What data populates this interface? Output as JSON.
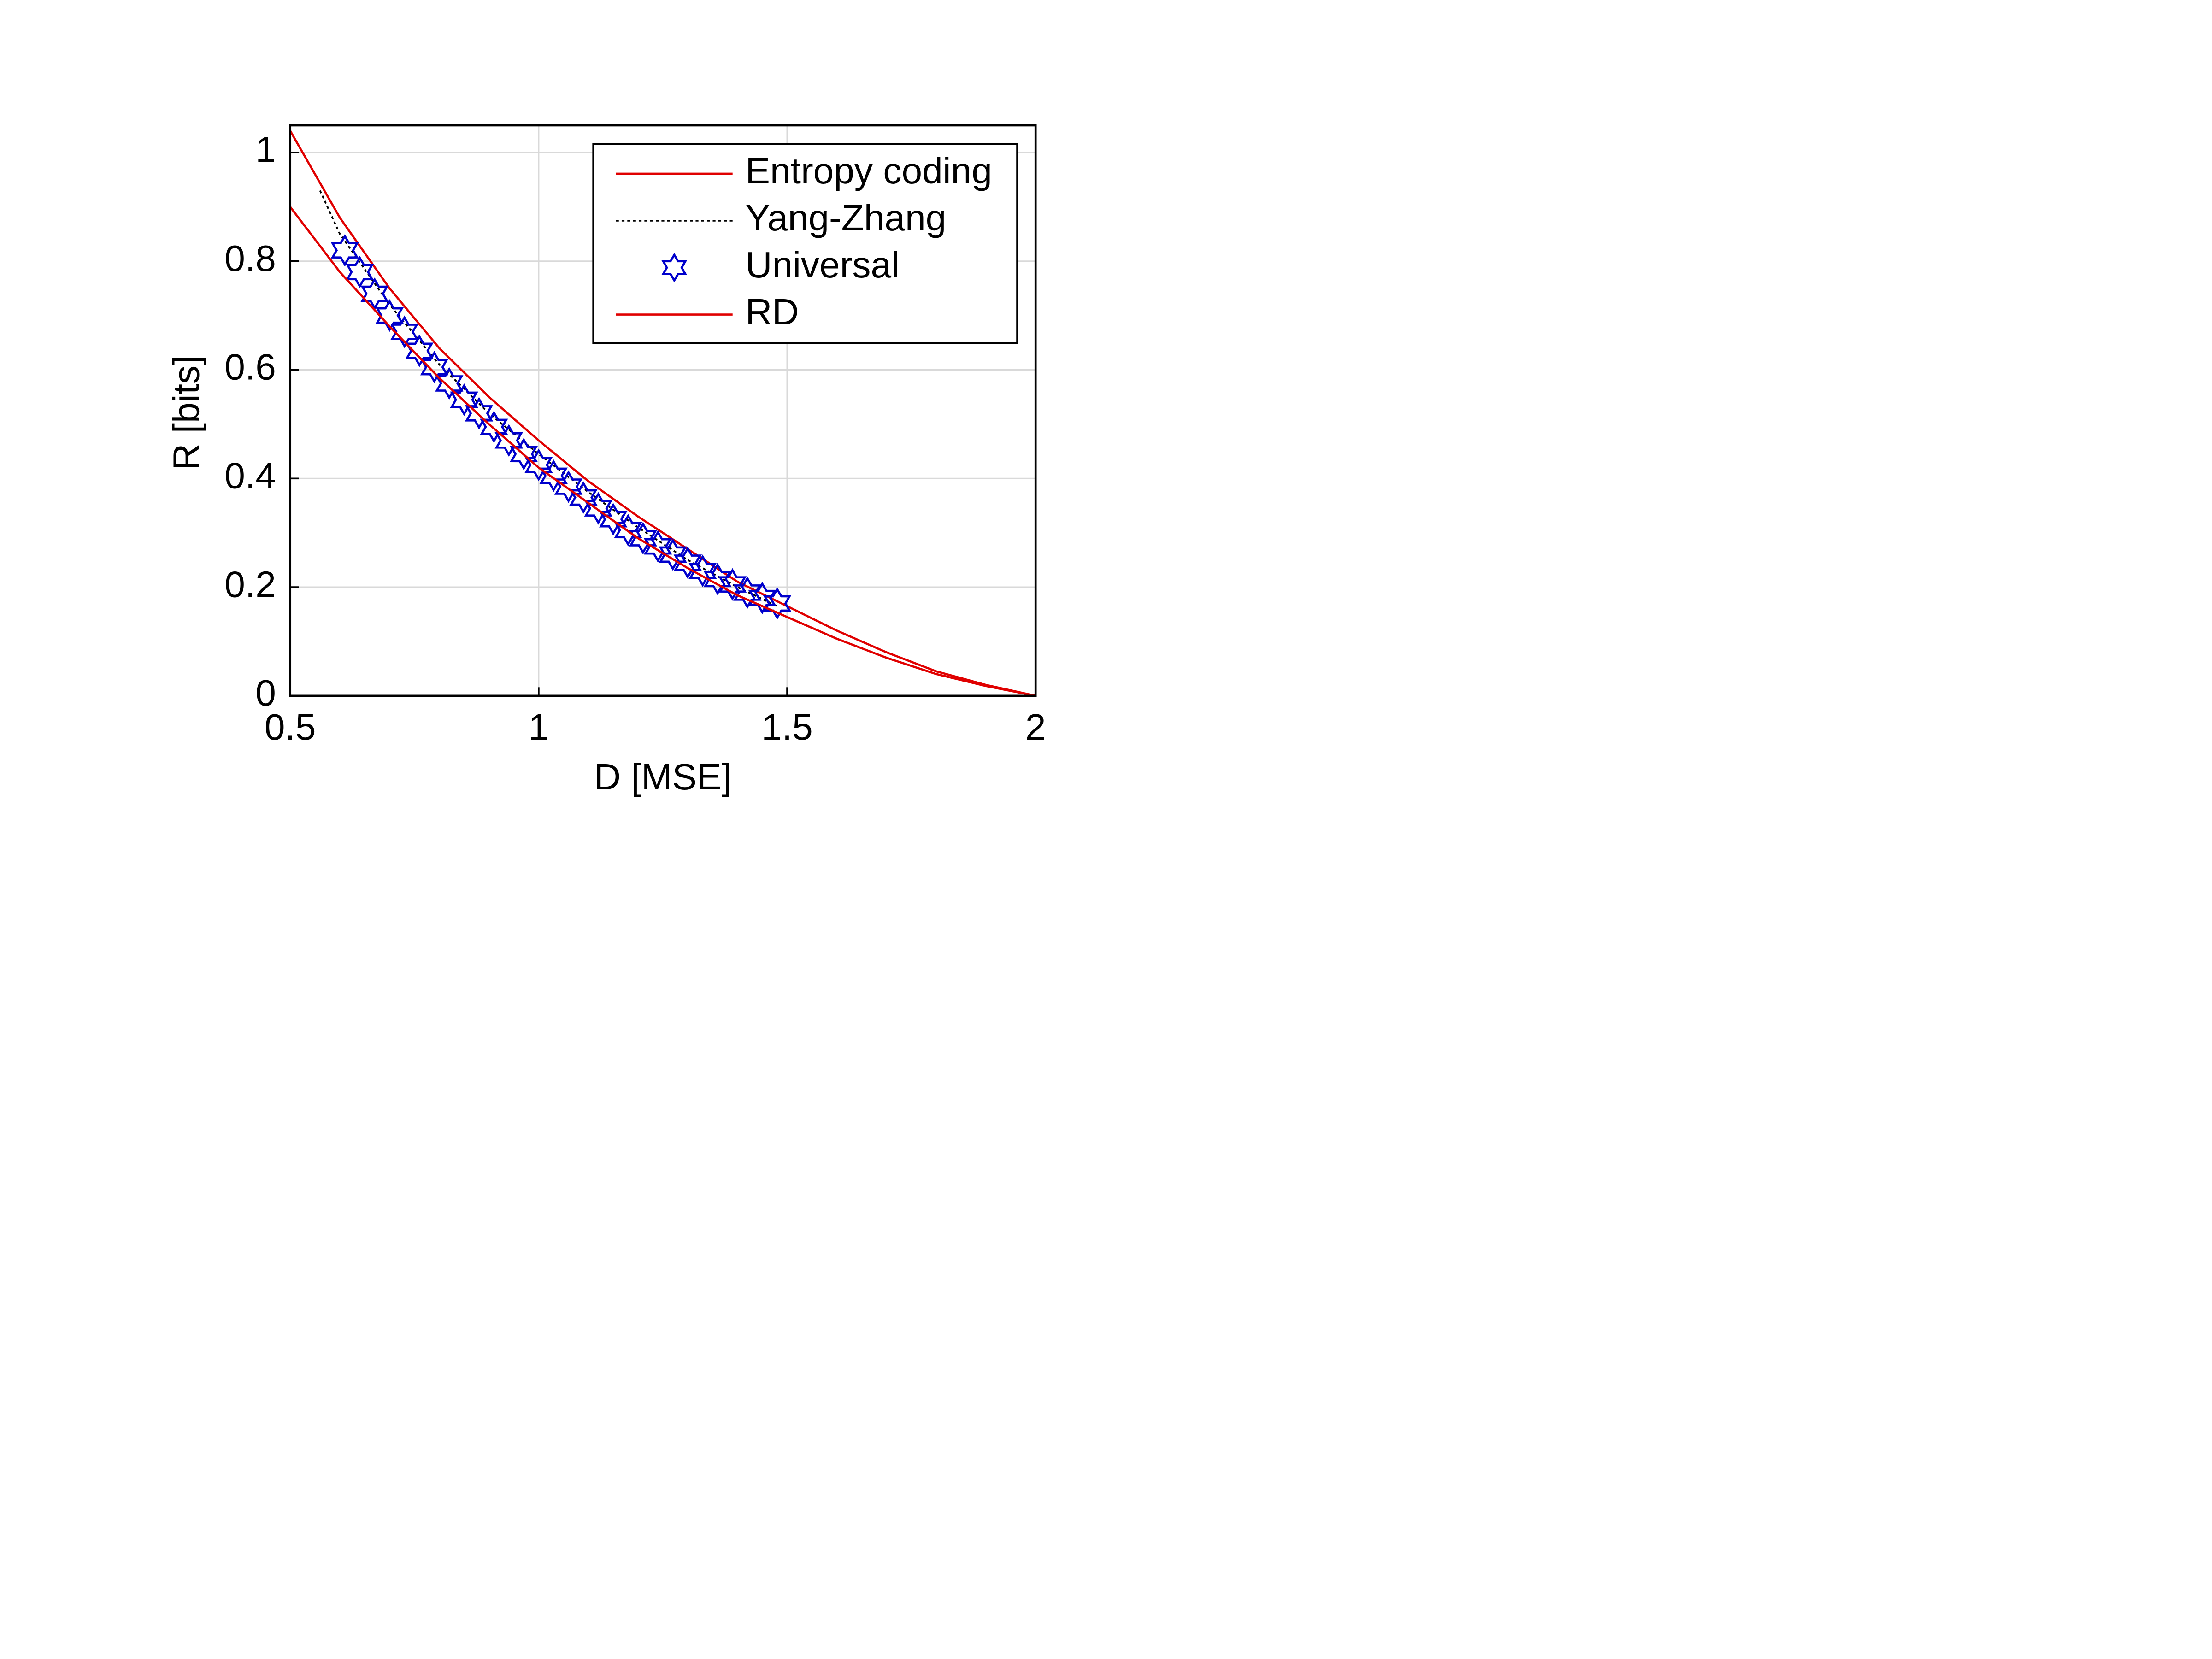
{
  "chart_data": {
    "type": "line",
    "xlabel": "D [MSE]",
    "ylabel": "R [bits]",
    "xlim": [
      0.5,
      2
    ],
    "xticks": [
      0.5,
      1,
      1.5,
      2
    ],
    "ylim": [
      0,
      1.05
    ],
    "yticks": [
      0,
      0.2,
      0.4,
      0.6,
      0.8,
      1
    ],
    "grid": true,
    "legend": "upper right",
    "series": [
      {
        "name": "Entropy coding",
        "color": "#e00000",
        "style": "solid",
        "x": [
          0.5,
          0.6,
          0.7,
          0.8,
          0.9,
          1.0,
          1.1,
          1.2,
          1.3,
          1.4,
          1.5,
          1.6,
          1.7,
          1.8,
          1.9,
          2.0
        ],
        "values": [
          1.04,
          0.88,
          0.75,
          0.64,
          0.55,
          0.47,
          0.395,
          0.33,
          0.27,
          0.21,
          0.165,
          0.12,
          0.08,
          0.045,
          0.02,
          0
        ]
      },
      {
        "name": "Yang-Zhang",
        "color": "#000000",
        "style": "dotted",
        "x": [
          0.56,
          0.6,
          0.7,
          0.8,
          0.9,
          1.0,
          1.1,
          1.2,
          1.3,
          1.4,
          1.48
        ],
        "values": [
          0.93,
          0.85,
          0.72,
          0.61,
          0.52,
          0.445,
          0.375,
          0.31,
          0.25,
          0.2,
          0.165
        ]
      },
      {
        "name": "Universal",
        "color": "#0000cc",
        "style": "marker",
        "x": [
          0.61,
          0.64,
          0.67,
          0.7,
          0.73,
          0.76,
          0.79,
          0.82,
          0.85,
          0.88,
          0.91,
          0.94,
          0.97,
          1.0,
          1.03,
          1.06,
          1.09,
          1.12,
          1.15,
          1.18,
          1.21,
          1.24,
          1.27,
          1.3,
          1.33,
          1.36,
          1.39,
          1.42,
          1.45,
          1.48
        ],
        "values": [
          0.82,
          0.78,
          0.74,
          0.7,
          0.67,
          0.635,
          0.605,
          0.575,
          0.545,
          0.52,
          0.495,
          0.47,
          0.445,
          0.425,
          0.405,
          0.385,
          0.365,
          0.345,
          0.325,
          0.305,
          0.29,
          0.275,
          0.26,
          0.245,
          0.23,
          0.215,
          0.205,
          0.19,
          0.18,
          0.17
        ]
      },
      {
        "name": "RD",
        "color": "#e00000",
        "style": "solid",
        "x": [
          0.5,
          0.6,
          0.7,
          0.8,
          0.9,
          1.0,
          1.1,
          1.2,
          1.3,
          1.4,
          1.5,
          1.6,
          1.7,
          1.8,
          1.9,
          2.0
        ],
        "values": [
          0.9,
          0.78,
          0.68,
          0.585,
          0.5,
          0.42,
          0.355,
          0.29,
          0.235,
          0.185,
          0.145,
          0.105,
          0.07,
          0.04,
          0.018,
          0
        ]
      }
    ]
  }
}
